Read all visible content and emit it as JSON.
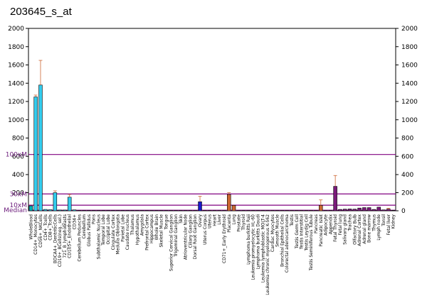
{
  "chart_data": {
    "type": "bar",
    "title": "203645_s_at",
    "xlabel": "",
    "ylabel": "",
    "ylim": [
      0,
      2000
    ],
    "grid": false,
    "left_axis_ticks": [
      "2000",
      "1800",
      "1600",
      "1400",
      "1200",
      "1000",
      "800",
      "600",
      "400",
      "200"
    ],
    "right_axis_ticks": [
      "2000",
      "1800",
      "1600",
      "1400",
      "1200",
      "1000",
      "800",
      "600",
      "400",
      "200",
      "0"
    ],
    "marker_lines": [
      {
        "label": "100xM",
        "value": 620,
        "color": "#800080"
      },
      {
        "label": "30xM",
        "value": 186,
        "color": "#800080"
      },
      {
        "label": "10xM",
        "value": 62,
        "color": "#800080"
      },
      {
        "label": "Median",
        "value": 6.2,
        "color": "#800080"
      }
    ],
    "categories": [
      "WholeBlood",
      "CD14+_Monocytes",
      "CD56+_NKCells",
      "CD4+_Tcells",
      "CD8+_Tcells",
      "BDCA4+_DentriticCells",
      "CD19+_BCells(neg._sel.)",
      "721_B_lymphoblasts",
      "CD105+_Endothelial",
      "CD34+",
      "Cerebellum Peduncles",
      "Cerebellum",
      "Globus Pallidus",
      "Pons",
      "Subthalamic Nucleus",
      "Temporal Lobe",
      "Occipital Lobe",
      "Cingulate Cortex",
      "Medulla Oblongata",
      "Parietal Lobe",
      "Caudate nucleus",
      "Thalamus",
      "Hypothalamus",
      "Amygdala",
      "Prefrontal Cortex",
      "Hippocampus",
      "Whole Brain",
      "Skeletal Muscle",
      "Tongue",
      "Superior Cervical Ganglion",
      "Trigeminal Ganglion",
      "Skin",
      "Atrioventricular Node",
      "Ciliary Ganglion",
      "Dorsal Root Ganglion",
      "Ovary",
      "Uterus Corpus",
      "Uterus",
      "Heart",
      "Liver",
      "CD71+_Early Erythroid",
      "Placenta",
      "Lung",
      "Prostate",
      "Thyroid",
      "Lymphoma burkitts Raji",
      "Leukemia promyelocytic HL-60",
      "Lymphoma burkitts Daudi",
      "Leukemia lymphoblastic MOLT-4",
      "Leukemia chronic myelogenous K-562",
      "Cardiac Myocytes",
      "Smooth Muscle",
      "Bronchial Epithelial Cells",
      "Colorectal adenocarcinoma",
      "Testis",
      "Testis Germ Cell",
      "Testis Interstitial",
      "Testis Leydig Cell",
      "Testis Seminiferous Tubule",
      "Pancreas",
      "Pancreatic Islet",
      "Adipocyte",
      "Appendix",
      "Fetal Thyroid",
      "Fetal lung",
      "Salivary gland",
      "Trachea",
      "Olfactory Bulb",
      "Adrenal Cortex",
      "Adrenal gland",
      "Bone marrow",
      "Thymus",
      "Lymph node",
      "Tonsil",
      "Fetal liver",
      "Kidney"
    ],
    "values": [
      55,
      1250,
      1380,
      15,
      12,
      200,
      8,
      8,
      150,
      10,
      3,
      3,
      3,
      3,
      3,
      3,
      3,
      3,
      3,
      3,
      3,
      3,
      3,
      3,
      3,
      3,
      3,
      3,
      3,
      3,
      3,
      3,
      3,
      3,
      3,
      100,
      3,
      3,
      3,
      3,
      3,
      180,
      60,
      3,
      3,
      3,
      3,
      3,
      3,
      3,
      3,
      3,
      3,
      3,
      3,
      3,
      3,
      3,
      3,
      3,
      60,
      3,
      3,
      270,
      15,
      18,
      20,
      18,
      30,
      35,
      35,
      15,
      40,
      10,
      18,
      5
    ],
    "errors": [
      0,
      20,
      270,
      0,
      0,
      20,
      0,
      0,
      30,
      0,
      0,
      0,
      0,
      0,
      0,
      0,
      0,
      0,
      0,
      0,
      0,
      0,
      0,
      0,
      0,
      0,
      0,
      0,
      0,
      0,
      0,
      0,
      0,
      0,
      0,
      60,
      0,
      0,
      0,
      0,
      0,
      20,
      0,
      0,
      0,
      0,
      0,
      0,
      0,
      0,
      0,
      0,
      0,
      0,
      0,
      0,
      0,
      0,
      0,
      0,
      60,
      0,
      0,
      120,
      0,
      0,
      0,
      0,
      0,
      0,
      0,
      0,
      0,
      0,
      10,
      0
    ],
    "colors": [
      "#00b0b8",
      "#33ccee",
      "#33ccee",
      "#33ccee",
      "#33ccee",
      "#33ccee",
      "#33ccee",
      "#33ccee",
      "#33ccee",
      "#33ccee",
      "#4466cc",
      "#4466cc",
      "#4466cc",
      "#4466cc",
      "#4466cc",
      "#4466cc",
      "#4466cc",
      "#4466cc",
      "#4466cc",
      "#4466cc",
      "#4466cc",
      "#4466cc",
      "#4466cc",
      "#4466cc",
      "#4466cc",
      "#4466cc",
      "#4466cc",
      "#4466cc",
      "#4466cc",
      "#4466cc",
      "#4466cc",
      "#4466cc",
      "#4466cc",
      "#4466cc",
      "#4466cc",
      "#1a1acc",
      "#cc6633",
      "#cc6633",
      "#cc6633",
      "#cc6633",
      "#cc6633",
      "#cc6633",
      "#cc6633",
      "#cc6633",
      "#cc6633",
      "#cc6633",
      "#cc6633",
      "#cc6633",
      "#cc6633",
      "#cc6633",
      "#cc6633",
      "#cc6633",
      "#cc6633",
      "#cc6633",
      "#cc6633",
      "#cc6633",
      "#cc6633",
      "#cc6633",
      "#cc6633",
      "#cc6633",
      "#cc6633",
      "#7a1a7a",
      "#7a1a7a",
      "#7a1a7a",
      "#7a1a7a",
      "#7a1a7a",
      "#7a1a7a",
      "#7a1a7a",
      "#7a1a7a",
      "#7a1a7a",
      "#7a1a7a",
      "#7a1a7a",
      "#7a1a7a",
      "#7a1a7a",
      "#7a1a7a",
      "#7a1a7a"
    ],
    "error_color": "#cc6633",
    "marker_color": "#800080"
  }
}
